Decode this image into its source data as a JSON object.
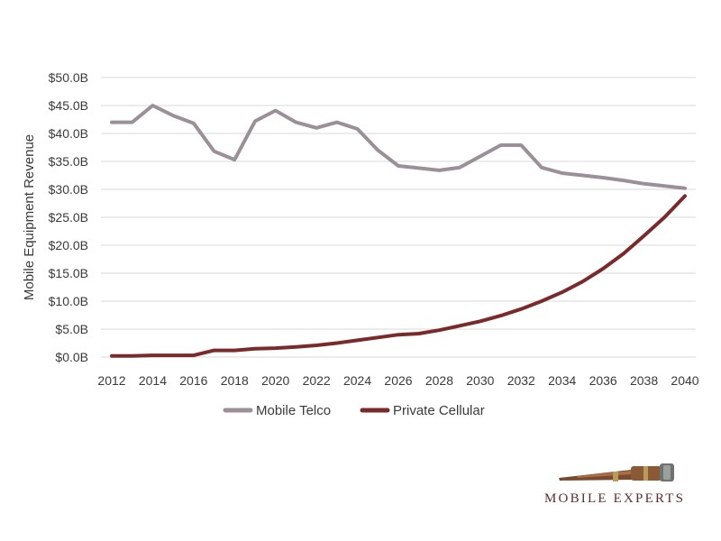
{
  "chart_data": {
    "type": "line",
    "title": "",
    "xlabel": "",
    "ylabel": "Mobile Equipment Revenue",
    "x": [
      2012,
      2013,
      2014,
      2015,
      2016,
      2017,
      2018,
      2019,
      2020,
      2021,
      2022,
      2023,
      2024,
      2025,
      2026,
      2027,
      2028,
      2029,
      2030,
      2031,
      2032,
      2033,
      2034,
      2035,
      2036,
      2037,
      2038,
      2039,
      2040
    ],
    "x_tick_labels": [
      "2012",
      "2014",
      "2016",
      "2018",
      "2020",
      "2022",
      "2024",
      "2026",
      "2028",
      "2030",
      "2032",
      "2034",
      "2036",
      "2038",
      "2040"
    ],
    "y_tick_labels": [
      "$0.0B",
      "$5.0B",
      "$10.0B",
      "$15.0B",
      "$20.0B",
      "$25.0B",
      "$30.0B",
      "$35.0B",
      "$40.0B",
      "$45.0B",
      "$50.0B"
    ],
    "ylim": [
      0,
      50
    ],
    "grid": true,
    "legend_position": "bottom",
    "series": [
      {
        "name": "Mobile Telco",
        "color": "#9b8f98",
        "values": [
          42.0,
          42.0,
          45.0,
          43.2,
          41.8,
          36.8,
          35.3,
          42.2,
          44.1,
          42.0,
          41.0,
          42.0,
          40.8,
          37.0,
          34.2,
          33.8,
          33.4,
          33.9,
          35.9,
          37.9,
          37.9,
          33.9,
          32.9,
          32.5,
          32.1,
          31.6,
          31.0,
          30.6,
          30.2
        ]
      },
      {
        "name": "Private Cellular",
        "color": "#7a2a2a",
        "values": [
          0.2,
          0.2,
          0.3,
          0.3,
          0.3,
          1.2,
          1.2,
          1.5,
          1.6,
          1.8,
          2.1,
          2.5,
          3.0,
          3.5,
          4.0,
          4.2,
          4.8,
          5.6,
          6.4,
          7.4,
          8.6,
          10.0,
          11.6,
          13.5,
          15.8,
          18.5,
          21.7,
          25.0,
          28.8
        ]
      }
    ]
  },
  "branding": {
    "logo_text": "MOBILE EXPERTS",
    "logo_icon": "telescope-icon"
  }
}
